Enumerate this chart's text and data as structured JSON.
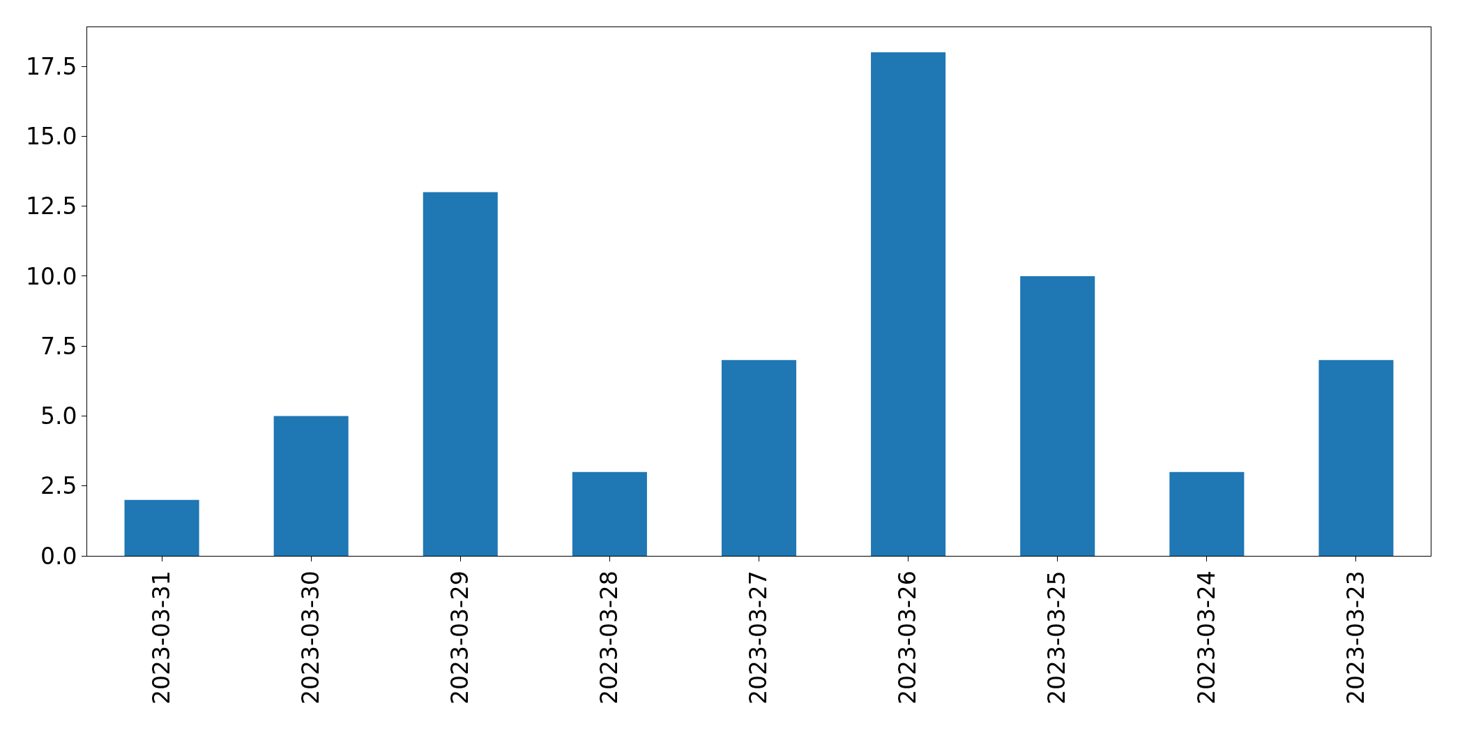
{
  "chart_data": {
    "type": "bar",
    "categories": [
      "2023-03-31",
      "2023-03-30",
      "2023-03-29",
      "2023-03-28",
      "2023-03-27",
      "2023-03-26",
      "2023-03-25",
      "2023-03-24",
      "2023-03-23"
    ],
    "values": [
      2,
      5,
      13,
      3,
      7,
      18,
      10,
      3,
      7
    ],
    "color": "#1f77b4",
    "ylim": [
      0,
      18.9
    ],
    "yticks": [
      {
        "value": 0,
        "label": "0.0"
      },
      {
        "value": 2.5,
        "label": "2.5"
      },
      {
        "value": 5,
        "label": "5.0"
      },
      {
        "value": 7.5,
        "label": "7.5"
      },
      {
        "value": 10,
        "label": "10.0"
      },
      {
        "value": 12.5,
        "label": "12.5"
      },
      {
        "value": 15,
        "label": "15.0"
      },
      {
        "value": 17.5,
        "label": "17.5"
      }
    ],
    "grid": false
  }
}
